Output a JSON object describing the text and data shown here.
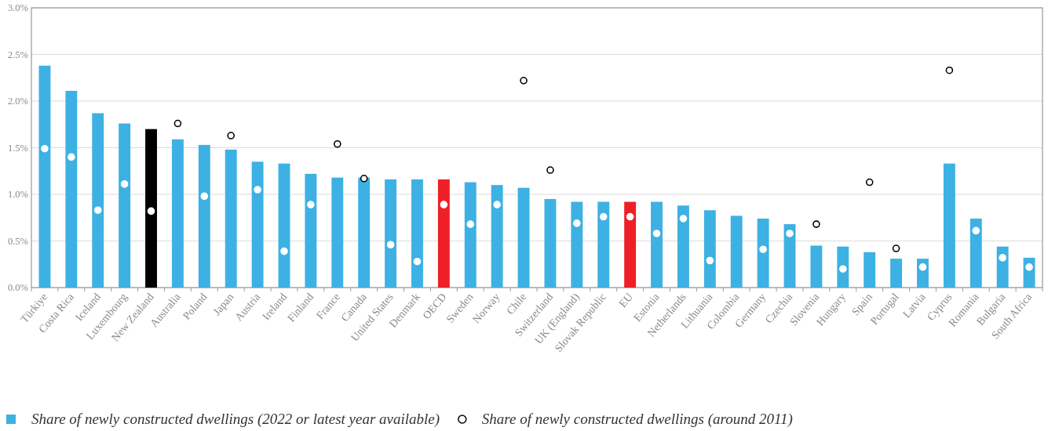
{
  "chart_data": {
    "type": "bar",
    "categories": [
      "Türkiye",
      "Costa Rica",
      "Iceland",
      "Luxembourg",
      "New Zealand",
      "Australia",
      "Poland",
      "Japan",
      "Austria",
      "Ireland",
      "Finland",
      "France",
      "Canada",
      "United States",
      "Denmark",
      "OECD",
      "Sweden",
      "Norway",
      "Chile",
      "Switzerland",
      "UK (England)",
      "Slovak Republic",
      "EU",
      "Estonia",
      "Netherlands",
      "Lithuania",
      "Colombia",
      "Germany",
      "Czechia",
      "Slovenia",
      "Hungary",
      "Spain",
      "Portugal",
      "Latvia",
      "Cyprus",
      "Romania",
      "Bulgaria",
      "South Africa"
    ],
    "series": [
      {
        "name": "Share of newly constructed dwellings (2022 or latest year available)",
        "color": "#3db1e3",
        "colors": [
          "#3db1e3",
          "#3db1e3",
          "#3db1e3",
          "#3db1e3",
          "#000000",
          "#3db1e3",
          "#3db1e3",
          "#3db1e3",
          "#3db1e3",
          "#3db1e3",
          "#3db1e3",
          "#3db1e3",
          "#3db1e3",
          "#3db1e3",
          "#3db1e3",
          "#ee1f26",
          "#3db1e3",
          "#3db1e3",
          "#3db1e3",
          "#3db1e3",
          "#3db1e3",
          "#3db1e3",
          "#ee1f26",
          "#3db1e3",
          "#3db1e3",
          "#3db1e3",
          "#3db1e3",
          "#3db1e3",
          "#3db1e3",
          "#3db1e3",
          "#3db1e3",
          "#3db1e3",
          "#3db1e3",
          "#3db1e3",
          "#3db1e3",
          "#3db1e3",
          "#3db1e3",
          "#3db1e3"
        ],
        "values": [
          2.38,
          2.11,
          1.87,
          1.76,
          1.7,
          1.59,
          1.53,
          1.48,
          1.35,
          1.33,
          1.22,
          1.18,
          1.18,
          1.16,
          1.16,
          1.16,
          1.13,
          1.1,
          1.07,
          0.95,
          0.92,
          0.92,
          0.92,
          0.92,
          0.88,
          0.83,
          0.77,
          0.74,
          0.68,
          0.45,
          0.44,
          0.38,
          0.31,
          0.31,
          1.33,
          0.74,
          0.44,
          0.32
        ]
      },
      {
        "name": "Share of newly constructed dwellings (around 2011)",
        "type": "scatter",
        "color": "#000000",
        "colors": [
          "#ffffff",
          "#ffffff",
          "#ffffff",
          "#ffffff",
          "#ffffff",
          "#000000",
          "#ffffff",
          "#000000",
          "#ffffff",
          "#ffffff",
          "#ffffff",
          "#000000",
          "#000000",
          "#ffffff",
          "#ffffff",
          "#ffffff",
          "#ffffff",
          "#ffffff",
          "#000000",
          "#000000",
          "#ffffff",
          "#ffffff",
          "#ffffff",
          "#ffffff",
          "#ffffff",
          "#ffffff",
          null,
          "#ffffff",
          "#ffffff",
          "#000000",
          "#ffffff",
          "#000000",
          "#000000",
          "#ffffff",
          "#000000",
          "#ffffff",
          "#ffffff",
          "#ffffff"
        ],
        "marker": "circle",
        "values": [
          1.49,
          1.4,
          0.83,
          1.11,
          0.82,
          1.76,
          0.98,
          1.63,
          1.05,
          0.39,
          0.89,
          1.54,
          1.17,
          0.46,
          0.28,
          0.89,
          0.68,
          0.89,
          2.22,
          1.26,
          0.69,
          0.76,
          0.76,
          0.58,
          0.74,
          0.29,
          null,
          0.41,
          0.58,
          0.68,
          0.2,
          1.13,
          0.42,
          0.22,
          2.33,
          0.61,
          0.32,
          0.22
        ]
      }
    ],
    "ylim": [
      0,
      3
    ],
    "yticks": [
      {
        "value": 0,
        "label": "0.0%"
      },
      {
        "value": 0.5,
        "label": "0.5%"
      },
      {
        "value": 1,
        "label": "1.0%"
      },
      {
        "value": 1.5,
        "label": "1.5%"
      },
      {
        "value": 2,
        "label": "2.0%"
      },
      {
        "value": 2.5,
        "label": "2.5%"
      },
      {
        "value": 3,
        "label": "3.0%"
      }
    ],
    "grid": "y",
    "legend": "bottom"
  }
}
